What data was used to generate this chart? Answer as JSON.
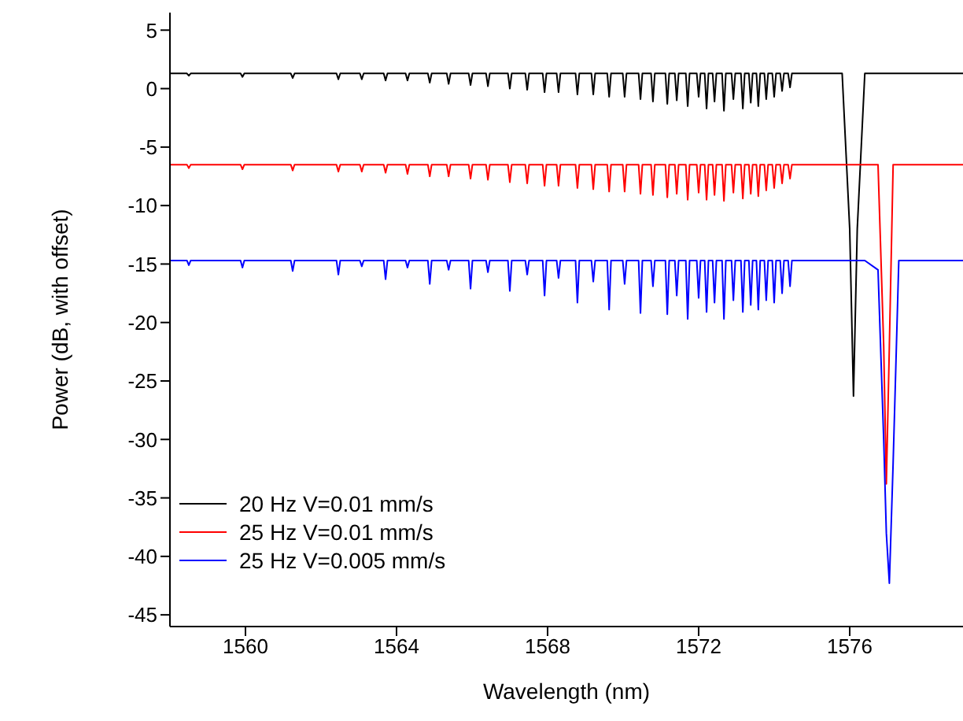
{
  "chart_data": {
    "type": "line",
    "xlabel": "Wavelength (nm)",
    "ylabel": "Power (dB, with offset)",
    "x": [
      1558,
      1558.45,
      1558.5,
      1558.55,
      1559.87,
      1559.92,
      1559.97,
      1561.2,
      1561.25,
      1561.3,
      1562.41,
      1562.46,
      1562.51,
      1563.03,
      1563.08,
      1563.13,
      1563.66,
      1563.71,
      1563.76,
      1564.24,
      1564.29,
      1564.34,
      1564.83,
      1564.88,
      1564.93,
      1565.33,
      1565.38,
      1565.43,
      1565.91,
      1565.96,
      1566.01,
      1566.37,
      1566.42,
      1566.47,
      1566.95,
      1567.0,
      1567.05,
      1567.41,
      1567.46,
      1567.51,
      1567.87,
      1567.92,
      1567.97,
      1568.24,
      1568.29,
      1568.34,
      1568.74,
      1568.79,
      1568.84,
      1569.16,
      1569.21,
      1569.26,
      1569.58,
      1569.63,
      1569.68,
      1569.99,
      1570.04,
      1570.09,
      1570.41,
      1570.46,
      1570.51,
      1570.74,
      1570.79,
      1570.84,
      1571.12,
      1571.17,
      1571.22,
      1571.37,
      1571.42,
      1571.47,
      1571.66,
      1571.71,
      1571.76,
      1571.95,
      1572.0,
      1572.05,
      1572.16,
      1572.21,
      1572.26,
      1572.37,
      1572.42,
      1572.47,
      1572.62,
      1572.67,
      1572.72,
      1572.87,
      1572.92,
      1572.97,
      1573.12,
      1573.17,
      1573.22,
      1573.33,
      1573.38,
      1573.43,
      1573.53,
      1573.58,
      1573.63,
      1573.74,
      1573.79,
      1573.84,
      1573.95,
      1574.0,
      1574.05,
      1574.16,
      1574.21,
      1574.26,
      1574.37,
      1574.42,
      1574.47,
      1575.0,
      1575.8,
      1576.0,
      1576.1,
      1576.2,
      1576.4,
      1576.75,
      1576.9,
      1576.97,
      1577.05,
      1577.15,
      1577.3,
      1579
    ],
    "series": [
      {
        "name": "20 Hz V=0.01 mm/s",
        "color": "#000000",
        "values": [
          1.3,
          1.3,
          1.1,
          1.3,
          1.3,
          1.0,
          1.3,
          1.3,
          0.9,
          1.3,
          1.3,
          0.8,
          1.3,
          1.3,
          0.8,
          1.3,
          1.3,
          0.7,
          1.3,
          1.3,
          0.7,
          1.3,
          1.3,
          0.5,
          1.3,
          1.3,
          0.4,
          1.3,
          1.3,
          0.3,
          1.3,
          1.3,
          0.2,
          1.3,
          1.3,
          0,
          1.3,
          1.3,
          -0.1,
          1.3,
          1.3,
          -0.3,
          1.3,
          1.3,
          -0.3,
          1.3,
          1.3,
          -0.5,
          1.3,
          1.3,
          -0.5,
          1.3,
          1.3,
          -0.7,
          1.3,
          1.3,
          -0.7,
          1.3,
          1.3,
          -0.9,
          1.3,
          1.3,
          -1.1,
          1.3,
          1.3,
          -1.3,
          1.3,
          1.3,
          -1,
          1.3,
          1.3,
          -1.5,
          1.3,
          1.3,
          -0.7,
          1.3,
          1.3,
          -1.7,
          1.3,
          1.3,
          -1.1,
          1.3,
          1.3,
          -1.9,
          1.3,
          1.3,
          -0.9,
          1.3,
          1.3,
          -1.7,
          1.3,
          1.3,
          -1.2,
          1.3,
          1.3,
          -1.5,
          1.3,
          1.3,
          -0.9,
          1.3,
          1.3,
          -0.7,
          1.3,
          1.3,
          -0.2,
          1.3,
          1.3,
          0.1,
          1.3,
          1.3,
          1.3,
          -12,
          -26.3,
          -12,
          1.3,
          1.3,
          1.3,
          1.3,
          1.3,
          1.3,
          1.3,
          1.3
        ]
      },
      {
        "name": "25 Hz V=0.01 mm/s",
        "color": "#ff0000",
        "values": [
          -6.5,
          -6.5,
          -6.8,
          -6.5,
          -6.5,
          -6.9,
          -6.5,
          -6.5,
          -7,
          -6.5,
          -6.5,
          -7.1,
          -6.5,
          -6.5,
          -7.1,
          -6.5,
          -6.5,
          -7.2,
          -6.5,
          -6.5,
          -7.3,
          -6.5,
          -6.5,
          -7.5,
          -6.5,
          -6.5,
          -7.5,
          -6.5,
          -6.5,
          -7.7,
          -6.5,
          -6.5,
          -7.8,
          -6.5,
          -6.5,
          -8,
          -6.5,
          -6.5,
          -8.1,
          -6.5,
          -6.5,
          -8.3,
          -6.5,
          -6.5,
          -8.3,
          -6.5,
          -6.5,
          -8.5,
          -6.5,
          -6.5,
          -8.6,
          -6.5,
          -6.5,
          -8.8,
          -6.5,
          -6.5,
          -8.8,
          -6.5,
          -6.5,
          -9,
          -6.5,
          -6.5,
          -9.1,
          -6.5,
          -6.5,
          -9.3,
          -6.5,
          -6.5,
          -9,
          -6.5,
          -6.5,
          -9.5,
          -6.5,
          -6.5,
          -8.9,
          -6.5,
          -6.5,
          -9.5,
          -6.5,
          -6.5,
          -9.1,
          -6.5,
          -6.5,
          -9.6,
          -6.5,
          -6.5,
          -8.9,
          -6.5,
          -6.5,
          -9.4,
          -6.5,
          -6.5,
          -9,
          -6.5,
          -6.5,
          -9.2,
          -6.5,
          -6.5,
          -8.7,
          -6.5,
          -6.5,
          -8.5,
          -6.5,
          -6.5,
          -8.1,
          -6.5,
          -6.5,
          -7.7,
          -6.5,
          -6.5,
          -6.5,
          -6.5,
          -6.5,
          -6.5,
          -6.5,
          -6.5,
          -22,
          -33.8,
          -22,
          -6.5,
          -6.5,
          -6.5
        ]
      },
      {
        "name": "25 Hz V=0.005 mm/s",
        "color": "#0000ff",
        "values": [
          -14.7,
          -14.7,
          -15.1,
          -14.7,
          -14.7,
          -15.3,
          -14.7,
          -14.7,
          -15.6,
          -14.7,
          -14.7,
          -15.9,
          -14.7,
          -14.7,
          -15.2,
          -14.7,
          -14.7,
          -16.3,
          -14.7,
          -14.7,
          -15.3,
          -14.7,
          -14.7,
          -16.7,
          -14.7,
          -14.7,
          -15.5,
          -14.7,
          -14.7,
          -17.1,
          -14.7,
          -14.7,
          -15.7,
          -14.7,
          -14.7,
          -17.3,
          -14.7,
          -14.7,
          -15.9,
          -14.7,
          -14.7,
          -17.7,
          -14.7,
          -14.7,
          -16.2,
          -14.7,
          -14.7,
          -18.3,
          -14.7,
          -14.7,
          -16.5,
          -14.7,
          -14.7,
          -18.9,
          -14.7,
          -14.7,
          -16.7,
          -14.7,
          -14.7,
          -19.2,
          -14.7,
          -14.7,
          -16.9,
          -14.7,
          -14.7,
          -19.3,
          -14.7,
          -14.7,
          -17.7,
          -14.7,
          -14.7,
          -19.7,
          -14.7,
          -14.7,
          -17.9,
          -14.7,
          -14.7,
          -19.1,
          -14.7,
          -14.7,
          -18.3,
          -14.7,
          -14.7,
          -19.7,
          -14.7,
          -14.7,
          -18.1,
          -14.7,
          -14.7,
          -19.1,
          -14.7,
          -14.7,
          -18.5,
          -14.7,
          -14.7,
          -18.9,
          -14.7,
          -14.7,
          -18.1,
          -14.7,
          -14.7,
          -18.3,
          -14.7,
          -14.7,
          -17.5,
          -14.7,
          -14.7,
          -16.9,
          -14.7,
          -14.7,
          -14.7,
          -14.7,
          -14.7,
          -14.7,
          -14.7,
          -15.5,
          -30,
          -38,
          -42.3,
          -32,
          -14.7,
          -14.7
        ]
      }
    ],
    "xlim": [
      1558,
      1579
    ],
    "xticks": [
      1560,
      1564,
      1568,
      1572,
      1576
    ],
    "ylim": [
      -46,
      6.5
    ],
    "yticks": [
      5,
      0,
      -5,
      -10,
      -15,
      -20,
      -25,
      -30,
      -35,
      -40,
      -45
    ],
    "grid": false,
    "legend": "bottom left",
    "marker": "none",
    "line_style": "solid"
  }
}
